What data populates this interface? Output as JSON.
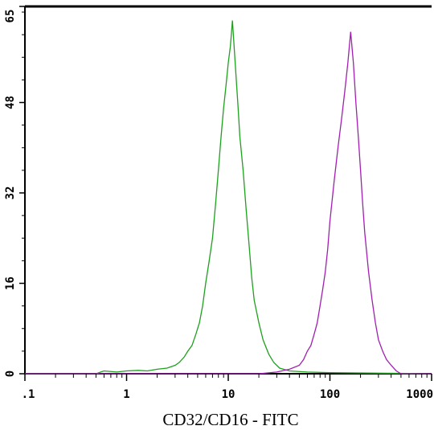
{
  "chart_data": {
    "type": "line",
    "title": "",
    "xlabel": "CD32/CD16 - FITC",
    "ylabel": "",
    "x_scale": "log",
    "xlim": [
      0.1,
      1000
    ],
    "ylim": [
      0,
      65
    ],
    "x_ticks": [
      {
        "value": 0.1,
        "label": ".1"
      },
      {
        "value": 1,
        "label": "1"
      },
      {
        "value": 10,
        "label": "10"
      },
      {
        "value": 100,
        "label": "100"
      },
      {
        "value": 1000,
        "label": "1000"
      }
    ],
    "y_ticks": [
      {
        "value": 0,
        "label": "0"
      },
      {
        "value": 16,
        "label": "16"
      },
      {
        "value": 32,
        "label": "32"
      },
      {
        "value": 48,
        "label": "48"
      },
      {
        "value": 65,
        "label": "65"
      }
    ],
    "grid": false,
    "series": [
      {
        "color": "#1fa01f",
        "points": [
          [
            0.1,
            0
          ],
          [
            0.5,
            0
          ],
          [
            0.6,
            0.5
          ],
          [
            0.8,
            0.3
          ],
          [
            1,
            0.5
          ],
          [
            1.3,
            0.6
          ],
          [
            1.6,
            0.5
          ],
          [
            2,
            0.8
          ],
          [
            2.5,
            1.0
          ],
          [
            3,
            1.5
          ],
          [
            3.3,
            2.0
          ],
          [
            3.7,
            3.0
          ],
          [
            4,
            4.0
          ],
          [
            4.4,
            5.0
          ],
          [
            4.8,
            7.0
          ],
          [
            5.2,
            9.0
          ],
          [
            5.6,
            12.0
          ],
          [
            6,
            16.0
          ],
          [
            6.5,
            20.0
          ],
          [
            7,
            24.0
          ],
          [
            7.5,
            30.0
          ],
          [
            8,
            36.0
          ],
          [
            8.5,
            42.0
          ],
          [
            9,
            47.0
          ],
          [
            9.5,
            51.0
          ],
          [
            10,
            55.0
          ],
          [
            10.5,
            58.0
          ],
          [
            11,
            62.5
          ],
          [
            11.5,
            57.0
          ],
          [
            12,
            52.0
          ],
          [
            12.5,
            47.0
          ],
          [
            13,
            42.0
          ],
          [
            14,
            36.0
          ],
          [
            15,
            29.0
          ],
          [
            16,
            23.0
          ],
          [
            17,
            17.0
          ],
          [
            18,
            13.0
          ],
          [
            20,
            9.0
          ],
          [
            22,
            6.0
          ],
          [
            25,
            3.5
          ],
          [
            28,
            2.0
          ],
          [
            32,
            1.0
          ],
          [
            40,
            0.5
          ],
          [
            60,
            0.3
          ],
          [
            100,
            0.2
          ],
          [
            1000,
            0
          ]
        ]
      },
      {
        "color": "#a020b0",
        "points": [
          [
            0.1,
            0
          ],
          [
            20,
            0
          ],
          [
            30,
            0.3
          ],
          [
            40,
            0.8
          ],
          [
            50,
            1.5
          ],
          [
            55,
            2.5
          ],
          [
            60,
            4.0
          ],
          [
            65,
            5.0
          ],
          [
            70,
            7.0
          ],
          [
            75,
            9.0
          ],
          [
            80,
            12.0
          ],
          [
            85,
            15.0
          ],
          [
            90,
            18.0
          ],
          [
            95,
            22.0
          ],
          [
            100,
            27.0
          ],
          [
            110,
            34.0
          ],
          [
            120,
            40.0
          ],
          [
            130,
            45.0
          ],
          [
            140,
            50.0
          ],
          [
            150,
            55.0
          ],
          [
            160,
            60.5
          ],
          [
            170,
            55.0
          ],
          [
            180,
            48.0
          ],
          [
            190,
            42.0
          ],
          [
            200,
            36.0
          ],
          [
            210,
            30.0
          ],
          [
            220,
            25.0
          ],
          [
            240,
            18.0
          ],
          [
            260,
            13.0
          ],
          [
            280,
            9.0
          ],
          [
            300,
            6.0
          ],
          [
            330,
            4.0
          ],
          [
            360,
            2.5
          ],
          [
            400,
            1.5
          ],
          [
            450,
            0.5
          ],
          [
            500,
            0
          ],
          [
            1000,
            0
          ]
        ]
      }
    ]
  }
}
